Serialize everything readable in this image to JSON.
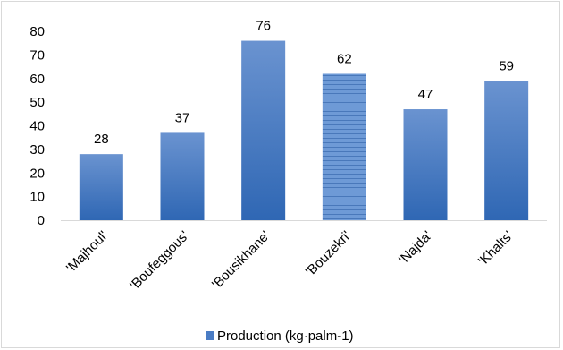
{
  "chart_data": {
    "type": "bar",
    "categories": [
      "'Majhoul'",
      "'Boufeggous'",
      "'Bousikhane'",
      "'Bouzekri'",
      "'Najda'",
      "'Khalts'"
    ],
    "series": [
      {
        "name": "Production (kg·palm-1)",
        "values": [
          28,
          37,
          76,
          62,
          47,
          59
        ]
      }
    ],
    "data_labels": [
      "28",
      "37",
      "76",
      "62",
      "47",
      "59"
    ],
    "yticks": [
      "0",
      "10",
      "20",
      "30",
      "40",
      "50",
      "60",
      "70",
      "80"
    ],
    "ylim": [
      0,
      80
    ],
    "title": "",
    "xlabel": "",
    "ylabel": "",
    "grid": false,
    "legend_position": "bottom",
    "colors": {
      "bar_top": "#6a93d0",
      "bar_bottom": "#2f67b4",
      "hatched_bar_index": 3,
      "hatch_line": "#3a6cb0",
      "axis": "#d9d9d9"
    }
  }
}
